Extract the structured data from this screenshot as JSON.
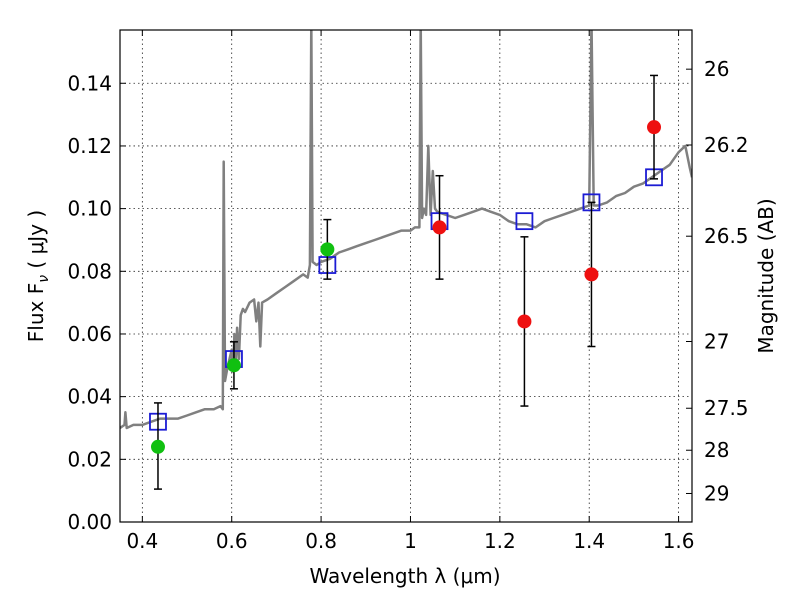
{
  "chart_data": {
    "type": "scatter",
    "xlabel": "Wavelength  λ (μm)",
    "ylabel": "Flux  F",
    "ylabel_sub": "ν",
    "ylabel_unit": " ( μJy )",
    "y2label": "Magnitude (AB)",
    "xlim": [
      0.35,
      1.63
    ],
    "ylim": [
      0.0,
      0.157
    ],
    "grid": true,
    "x_ticks": [
      0.4,
      0.6,
      0.8,
      1.0,
      1.2,
      1.4,
      1.6
    ],
    "x_tick_labels": [
      "0.4",
      "0.6",
      "0.8",
      "1",
      "1.2",
      "1.4",
      "1.6"
    ],
    "y_ticks": [
      0.0,
      0.02,
      0.04,
      0.06,
      0.08,
      0.1,
      0.12,
      0.14
    ],
    "y_tick_labels": [
      "0.00",
      "0.02",
      "0.04",
      "0.06",
      "0.08",
      "0.10",
      "0.12",
      "0.14"
    ],
    "y2_ticks": [
      {
        "label": "26",
        "flux": 0.1445
      },
      {
        "label": "26.2",
        "flux": 0.1203
      },
      {
        "label": "26.5",
        "flux": 0.0912
      },
      {
        "label": "27",
        "flux": 0.0576
      },
      {
        "label": "27.5",
        "flux": 0.0363
      },
      {
        "label": "28",
        "flux": 0.0229
      },
      {
        "label": "29",
        "flux": 0.0091
      }
    ],
    "series": [
      {
        "name": "template_spectrum",
        "kind": "line",
        "color": "#808080",
        "points": [
          [
            0.35,
            0.03
          ],
          [
            0.36,
            0.031
          ],
          [
            0.362,
            0.035
          ],
          [
            0.365,
            0.03
          ],
          [
            0.38,
            0.031
          ],
          [
            0.4,
            0.031
          ],
          [
            0.42,
            0.032
          ],
          [
            0.44,
            0.033
          ],
          [
            0.46,
            0.033
          ],
          [
            0.48,
            0.033
          ],
          [
            0.5,
            0.034
          ],
          [
            0.52,
            0.035
          ],
          [
            0.54,
            0.036
          ],
          [
            0.56,
            0.036
          ],
          [
            0.575,
            0.037
          ],
          [
            0.58,
            0.036
          ],
          [
            0.582,
            0.115
          ],
          [
            0.585,
            0.045
          ],
          [
            0.59,
            0.049
          ],
          [
            0.595,
            0.052
          ],
          [
            0.6,
            0.055
          ],
          [
            0.603,
            0.048
          ],
          [
            0.606,
            0.06
          ],
          [
            0.609,
            0.05
          ],
          [
            0.612,
            0.062
          ],
          [
            0.616,
            0.052
          ],
          [
            0.62,
            0.066
          ],
          [
            0.625,
            0.068
          ],
          [
            0.63,
            0.067
          ],
          [
            0.64,
            0.07
          ],
          [
            0.65,
            0.071
          ],
          [
            0.655,
            0.064
          ],
          [
            0.66,
            0.07
          ],
          [
            0.664,
            0.056
          ],
          [
            0.668,
            0.07
          ],
          [
            0.68,
            0.071
          ],
          [
            0.7,
            0.073
          ],
          [
            0.72,
            0.075
          ],
          [
            0.74,
            0.077
          ],
          [
            0.76,
            0.079
          ],
          [
            0.77,
            0.078
          ],
          [
            0.775,
            0.082
          ],
          [
            0.778,
            0.16
          ],
          [
            0.781,
            0.083
          ],
          [
            0.79,
            0.082
          ],
          [
            0.8,
            0.083
          ],
          [
            0.82,
            0.084
          ],
          [
            0.84,
            0.086
          ],
          [
            0.86,
            0.087
          ],
          [
            0.88,
            0.088
          ],
          [
            0.9,
            0.089
          ],
          [
            0.92,
            0.09
          ],
          [
            0.94,
            0.091
          ],
          [
            0.96,
            0.092
          ],
          [
            0.98,
            0.093
          ],
          [
            1.0,
            0.093
          ],
          [
            1.01,
            0.094
          ],
          [
            1.02,
            0.094
          ],
          [
            1.023,
            0.16
          ],
          [
            1.026,
            0.097
          ],
          [
            1.03,
            0.1
          ],
          [
            1.035,
            0.098
          ],
          [
            1.04,
            0.12
          ],
          [
            1.045,
            0.098
          ],
          [
            1.05,
            0.112
          ],
          [
            1.055,
            0.1
          ],
          [
            1.06,
            0.099
          ],
          [
            1.08,
            0.098
          ],
          [
            1.1,
            0.097
          ],
          [
            1.12,
            0.098
          ],
          [
            1.14,
            0.099
          ],
          [
            1.16,
            0.1
          ],
          [
            1.18,
            0.099
          ],
          [
            1.2,
            0.098
          ],
          [
            1.22,
            0.096
          ],
          [
            1.24,
            0.095
          ],
          [
            1.26,
            0.095
          ],
          [
            1.28,
            0.094
          ],
          [
            1.3,
            0.096
          ],
          [
            1.32,
            0.097
          ],
          [
            1.34,
            0.098
          ],
          [
            1.36,
            0.099
          ],
          [
            1.38,
            0.1
          ],
          [
            1.4,
            0.101
          ],
          [
            1.405,
            0.16
          ],
          [
            1.41,
            0.101
          ],
          [
            1.42,
            0.101
          ],
          [
            1.44,
            0.102
          ],
          [
            1.46,
            0.104
          ],
          [
            1.48,
            0.105
          ],
          [
            1.5,
            0.107
          ],
          [
            1.52,
            0.108
          ],
          [
            1.54,
            0.11
          ],
          [
            1.56,
            0.112
          ],
          [
            1.58,
            0.114
          ],
          [
            1.6,
            0.118
          ],
          [
            1.615,
            0.12
          ],
          [
            1.625,
            0.113
          ],
          [
            1.63,
            0.11
          ]
        ]
      },
      {
        "name": "model_photometry",
        "kind": "open_square",
        "color": "#1c1cd4",
        "points": [
          [
            0.435,
            0.032
          ],
          [
            0.605,
            0.052
          ],
          [
            0.814,
            0.082
          ],
          [
            1.065,
            0.096
          ],
          [
            1.255,
            0.096
          ],
          [
            1.405,
            0.102
          ],
          [
            1.545,
            0.11
          ]
        ]
      },
      {
        "name": "observed_detections",
        "kind": "filled_circle",
        "color": "#10c010",
        "points": [
          [
            0.435,
            0.024
          ],
          [
            0.605,
            0.05
          ],
          [
            0.814,
            0.087
          ]
        ],
        "yerr": [
          [
            0.0135,
            0.014
          ],
          [
            0.0075,
            0.0075
          ],
          [
            0.0095,
            0.0095
          ]
        ]
      },
      {
        "name": "observed_upper",
        "kind": "filled_circle",
        "color": "#ee1010",
        "points": [
          [
            1.065,
            0.094
          ],
          [
            1.255,
            0.064
          ],
          [
            1.405,
            0.079
          ],
          [
            1.545,
            0.126
          ]
        ],
        "yerr": [
          [
            0.0165,
            0.0165
          ],
          [
            0.027,
            0.027
          ],
          [
            0.023,
            0.023
          ],
          [
            0.0165,
            0.0165
          ]
        ]
      }
    ]
  }
}
